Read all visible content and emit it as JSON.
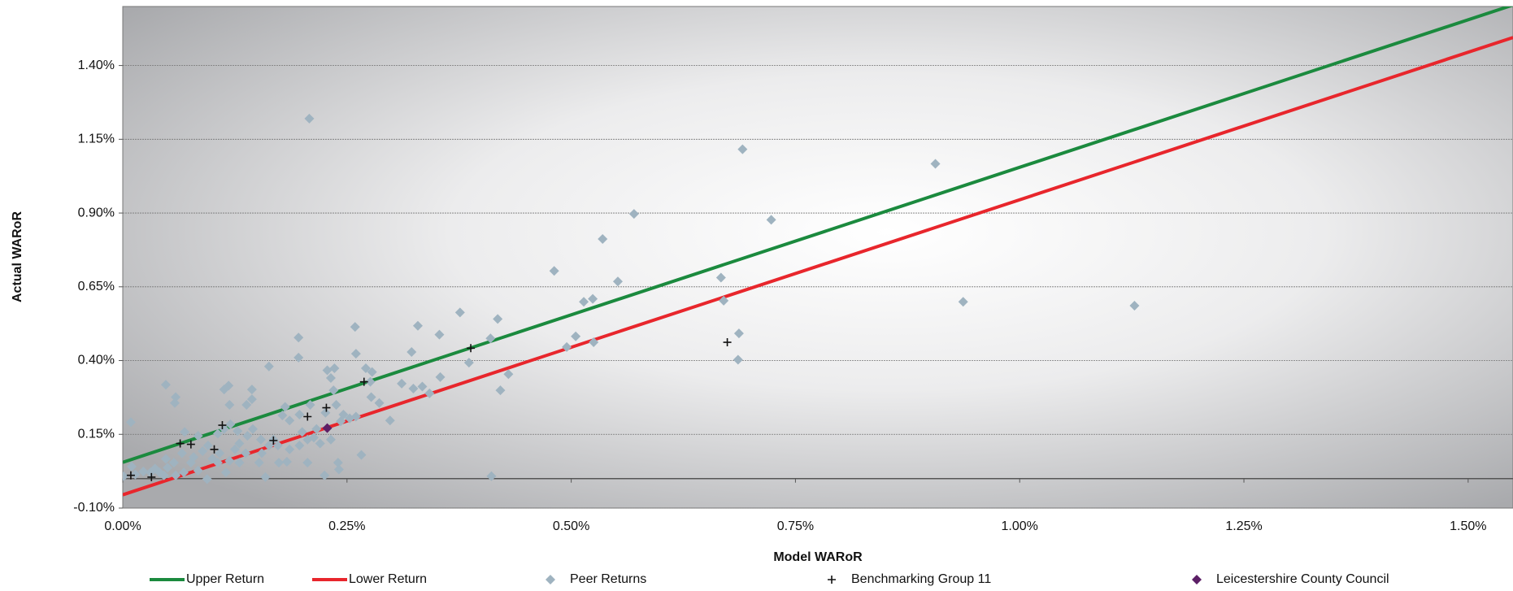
{
  "chart_data": {
    "type": "scatter",
    "x_label": "Model WARoR",
    "y_label": "Actual WARoR",
    "xlim": [
      0,
      1.55
    ],
    "ylim": [
      -0.1,
      1.6
    ],
    "xticks": [
      {
        "value": 0,
        "label": "0.00%"
      },
      {
        "value": 0.25,
        "label": "0.25%"
      },
      {
        "value": 0.5,
        "label": "0.50%"
      },
      {
        "value": 0.75,
        "label": "0.75%"
      },
      {
        "value": 1.0,
        "label": "1.00%"
      },
      {
        "value": 1.25,
        "label": "1.25%"
      },
      {
        "value": 1.5,
        "label": "1.50%"
      }
    ],
    "yticks": [
      {
        "value": -0.1,
        "label": "-0.10%"
      },
      {
        "value": 0.15,
        "label": "0.15%"
      },
      {
        "value": 0.4,
        "label": "0.40%"
      },
      {
        "value": 0.65,
        "label": "0.65%"
      },
      {
        "value": 0.9,
        "label": "0.90%"
      },
      {
        "value": 1.15,
        "label": "1.15%"
      },
      {
        "value": 1.4,
        "label": "1.40%"
      }
    ],
    "grid": true,
    "series": [
      {
        "name": "Upper Return",
        "style": "line",
        "color": "#1b8a3e",
        "x": [
          0,
          1.55
        ],
        "values": [
          0.055,
          1.605
        ]
      },
      {
        "name": "Lower Return",
        "style": "line",
        "color": "#e8262c",
        "x": [
          0,
          1.55
        ],
        "values": [
          -0.055,
          1.495
        ]
      },
      {
        "name": "Peer Returns",
        "style": "diamond",
        "color": "#9fb3c0",
        "x": [
          0.208,
          0.691,
          0.906,
          0.57,
          0.723,
          0.535,
          0.481,
          0.552,
          0.667,
          0.67,
          0.524,
          0.514,
          0.937,
          1.128,
          0.687,
          0.686,
          0.505,
          0.525,
          0.495,
          0.41,
          0.418,
          0.376,
          0.353,
          0.386,
          0.43,
          0.421,
          0.411,
          0.354,
          0.334,
          0.342,
          0.322,
          0.329,
          0.311,
          0.324,
          0.298,
          0.286,
          0.277,
          0.278,
          0.271,
          0.276,
          0.259,
          0.26,
          0.266,
          0.236,
          0.232,
          0.228,
          0.235,
          0.238,
          0.243,
          0.24,
          0.241,
          0.225,
          0.196,
          0.196,
          0.163,
          0.144,
          0.144,
          0.138,
          0.118,
          0.113,
          0.119,
          0.048,
          0.059,
          0.058,
          0.009,
          0.001,
          0.159,
          0.206,
          0.178,
          0.181,
          0.186,
          0.197,
          0.209,
          0.2,
          0.213,
          0.22,
          0.216,
          0.226,
          0.246,
          0.253,
          0.26,
          0.183,
          0.174,
          0.168,
          0.155,
          0.152,
          0.137,
          0.13,
          0.125,
          0.115,
          0.106,
          0.094,
          0.084,
          0.076,
          0.068,
          0.059,
          0.05,
          0.041,
          0.031,
          0.023,
          0.014,
          0.01,
          0.069,
          0.084,
          0.095,
          0.106,
          0.113,
          0.12,
          0.128,
          0.139,
          0.145,
          0.154,
          0.163,
          0.173,
          0.186,
          0.197,
          0.206,
          0.048,
          0.057,
          0.066,
          0.079,
          0.089,
          0.1,
          0.108,
          0.119,
          0.13,
          0.036,
          0.046,
          0.232
        ],
        "values": [
          1.22,
          1.116,
          1.067,
          0.897,
          0.877,
          0.812,
          0.704,
          0.668,
          0.681,
          0.603,
          0.609,
          0.599,
          0.599,
          0.586,
          0.492,
          0.403,
          0.482,
          0.462,
          0.446,
          0.475,
          0.541,
          0.563,
          0.488,
          0.393,
          0.354,
          0.299,
          0.008,
          0.344,
          0.312,
          0.289,
          0.429,
          0.518,
          0.322,
          0.305,
          0.197,
          0.256,
          0.276,
          0.361,
          0.374,
          0.328,
          0.514,
          0.423,
          0.08,
          0.374,
          0.341,
          0.367,
          0.299,
          0.25,
          0.194,
          0.054,
          0.031,
          0.011,
          0.478,
          0.41,
          0.38,
          0.302,
          0.269,
          0.25,
          0.315,
          0.302,
          0.25,
          0.318,
          0.276,
          0.256,
          0.191,
          0.008,
          0.005,
          0.054,
          0.214,
          0.243,
          0.197,
          0.217,
          0.25,
          0.158,
          0.139,
          0.119,
          0.168,
          0.223,
          0.217,
          0.204,
          0.21,
          0.057,
          0.054,
          0.132,
          0.086,
          0.054,
          0.086,
          0.119,
          0.099,
          0.021,
          0.054,
          -0.002,
          0.027,
          0.054,
          0.021,
          0.011,
          0.037,
          0.021,
          0.021,
          0.024,
          0.014,
          0.041,
          0.158,
          0.145,
          0.112,
          0.152,
          0.168,
          0.184,
          0.161,
          0.145,
          0.168,
          0.132,
          0.112,
          0.112,
          0.099,
          0.112,
          0.132,
          0.067,
          0.054,
          0.086,
          0.073,
          0.093,
          0.067,
          0.086,
          0.06,
          0.054,
          0.034,
          0.011,
          0.132
        ]
      },
      {
        "name": "Benchmarking Group 11",
        "style": "plus",
        "color": "#111111",
        "x": [
          0.009,
          0.032,
          0.064,
          0.076,
          0.102,
          0.111,
          0.168,
          0.206,
          0.227,
          0.269,
          0.388,
          0.674
        ],
        "values": [
          0.011,
          0.005,
          0.119,
          0.116,
          0.099,
          0.181,
          0.129,
          0.21,
          0.24,
          0.328,
          0.442,
          0.462
        ]
      },
      {
        "name": "Leicestershire County Council",
        "style": "diamond",
        "color": "#5c1f66",
        "x": [
          0.228
        ],
        "values": [
          0.171
        ]
      }
    ]
  }
}
